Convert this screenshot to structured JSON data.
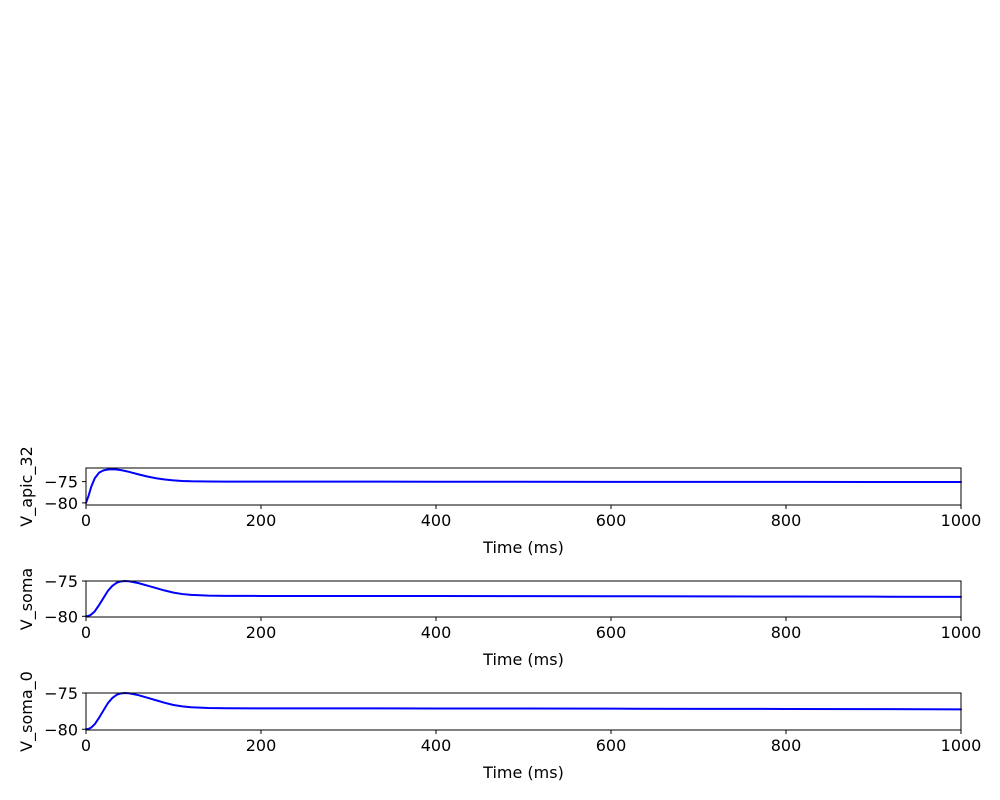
{
  "chart_data": [
    {
      "type": "line",
      "xlabel": "Time (ms)",
      "ylabel": "V_apic_32",
      "xlim": [
        0,
        1000
      ],
      "ylim": [
        -80.5,
        -71.8
      ],
      "xticks": [
        0,
        200,
        400,
        600,
        800,
        1000
      ],
      "yticks": [
        -80,
        -75
      ],
      "grid": false,
      "series": [
        {
          "color": "#0000ff",
          "x": [
            0,
            3,
            6,
            10,
            15,
            20,
            25,
            30,
            35,
            40,
            45,
            50,
            60,
            70,
            80,
            90,
            100,
            110,
            120,
            140,
            160,
            200,
            300,
            400,
            500,
            600,
            700,
            800,
            900,
            1000
          ],
          "values": [
            -80.0,
            -78.3,
            -76.2,
            -74.2,
            -72.9,
            -72.35,
            -72.15,
            -72.1,
            -72.15,
            -72.3,
            -72.5,
            -72.75,
            -73.3,
            -73.8,
            -74.2,
            -74.5,
            -74.7,
            -74.85,
            -74.92,
            -74.97,
            -75.0,
            -75.0,
            -75.0,
            -75.02,
            -75.03,
            -75.05,
            -75.06,
            -75.07,
            -75.08,
            -75.1
          ]
        }
      ]
    },
    {
      "type": "line",
      "xlabel": "Time (ms)",
      "ylabel": "V_soma",
      "xlim": [
        0,
        1000
      ],
      "ylim": [
        -80.1,
        -75.0
      ],
      "xticks": [
        0,
        200,
        400,
        600,
        800,
        1000
      ],
      "yticks": [
        -80,
        -75
      ],
      "grid": false,
      "series": [
        {
          "color": "#0000ff",
          "x": [
            0,
            3,
            6,
            10,
            15,
            20,
            25,
            30,
            35,
            40,
            45,
            50,
            60,
            70,
            80,
            90,
            100,
            110,
            120,
            140,
            160,
            200,
            300,
            400,
            500,
            600,
            700,
            800,
            900,
            1000
          ],
          "values": [
            -80.0,
            -79.95,
            -79.75,
            -79.3,
            -78.4,
            -77.4,
            -76.4,
            -75.7,
            -75.25,
            -75.05,
            -75.0,
            -75.05,
            -75.3,
            -75.65,
            -76.0,
            -76.35,
            -76.65,
            -76.85,
            -76.97,
            -77.07,
            -77.1,
            -77.12,
            -77.12,
            -77.13,
            -77.14,
            -77.16,
            -77.18,
            -77.2,
            -77.22,
            -77.25
          ]
        }
      ]
    },
    {
      "type": "line",
      "xlabel": "Time (ms)",
      "ylabel": "V_soma_0",
      "xlim": [
        0,
        1000
      ],
      "ylim": [
        -80.1,
        -75.0
      ],
      "xticks": [
        0,
        200,
        400,
        600,
        800,
        1000
      ],
      "yticks": [
        -80,
        -75
      ],
      "grid": false,
      "series": [
        {
          "color": "#0000ff",
          "x": [
            0,
            3,
            6,
            10,
            15,
            20,
            25,
            30,
            35,
            40,
            45,
            50,
            60,
            70,
            80,
            90,
            100,
            110,
            120,
            140,
            160,
            200,
            300,
            400,
            500,
            600,
            700,
            800,
            900,
            1000
          ],
          "values": [
            -80.0,
            -79.95,
            -79.75,
            -79.3,
            -78.4,
            -77.4,
            -76.4,
            -75.7,
            -75.25,
            -75.05,
            -75.0,
            -75.05,
            -75.3,
            -75.65,
            -76.0,
            -76.35,
            -76.65,
            -76.85,
            -76.97,
            -77.07,
            -77.1,
            -77.12,
            -77.12,
            -77.13,
            -77.14,
            -77.16,
            -77.18,
            -77.2,
            -77.22,
            -77.25
          ]
        }
      ]
    }
  ]
}
